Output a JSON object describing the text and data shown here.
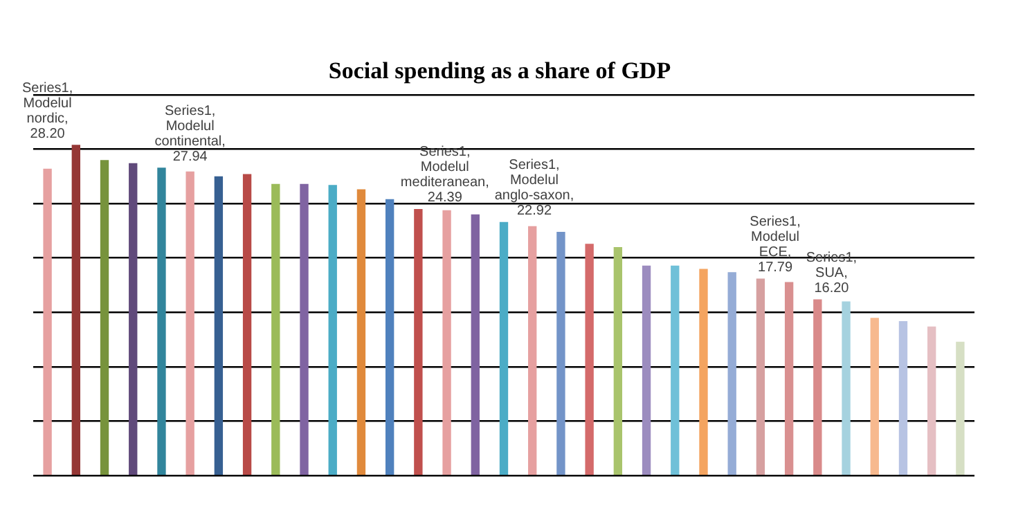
{
  "chart_data": {
    "type": "bar",
    "title": "Social spending as a share of GDP",
    "categories": [
      null,
      null,
      null,
      null,
      null,
      null,
      null,
      null,
      null,
      null,
      null,
      null,
      null,
      null,
      null,
      null,
      null,
      null,
      null,
      null,
      null,
      null,
      null,
      null,
      null,
      null,
      null,
      null,
      null,
      null,
      null,
      null,
      null
    ],
    "values": [
      28.2,
      30.4,
      29.0,
      28.7,
      28.3,
      27.94,
      27.5,
      27.7,
      26.8,
      26.8,
      26.7,
      26.3,
      25.4,
      24.5,
      24.39,
      24.0,
      23.3,
      22.92,
      22.4,
      21.3,
      21.0,
      19.3,
      19.3,
      19.0,
      18.7,
      18.1,
      17.79,
      16.2,
      16.0,
      14.5,
      14.2,
      13.7,
      12.3
    ],
    "colors": [
      "#e6a0a0",
      "#953735",
      "#77933c",
      "#604a7b",
      "#31859c",
      "#e6a0a0",
      "#376092",
      "#b84a47",
      "#9bbb59",
      "#8064a2",
      "#4bacc6",
      "#e08a3c",
      "#4f81bd",
      "#c0504d",
      "#e6a0a0",
      "#7f63a1",
      "#4bacc6",
      "#e6a0a0",
      "#7394c8",
      "#d46a6a",
      "#a9c46c",
      "#9c8cbf",
      "#6fc0d8",
      "#f4a460",
      "#95acd6",
      "#d6a0a0",
      "#d99090",
      "#d98a8a",
      "#a5d2df",
      "#f7b98e",
      "#b7c3e3",
      "#e5bfc3",
      "#d6dfc4"
    ],
    "value_labels": [
      "Series1, Modelul nordic, 28.20",
      null,
      null,
      null,
      null,
      "Series1, Modelul continental, 27.94",
      null,
      null,
      null,
      null,
      null,
      null,
      null,
      null,
      "Series1, Modelul mediteranean, 24.39",
      null,
      null,
      "Series1, Modelul anglo-saxon, 22.92",
      null,
      null,
      null,
      null,
      null,
      null,
      null,
      null,
      "Series1, Modelul ECE, 17.79",
      "Series1, SUA, 16.20",
      null,
      null,
      null,
      null,
      null
    ],
    "ylim": [
      0,
      35
    ],
    "yticks": [
      {
        "value": 0,
        "label": null
      },
      {
        "value": 5,
        "label": null
      },
      {
        "value": 10,
        "label": null
      },
      {
        "value": 15,
        "label": null
      },
      {
        "value": 20,
        "label": null
      },
      {
        "value": 25,
        "label": null
      },
      {
        "value": 30,
        "label": null
      },
      {
        "value": 35,
        "label": null
      }
    ],
    "grid": "y"
  }
}
